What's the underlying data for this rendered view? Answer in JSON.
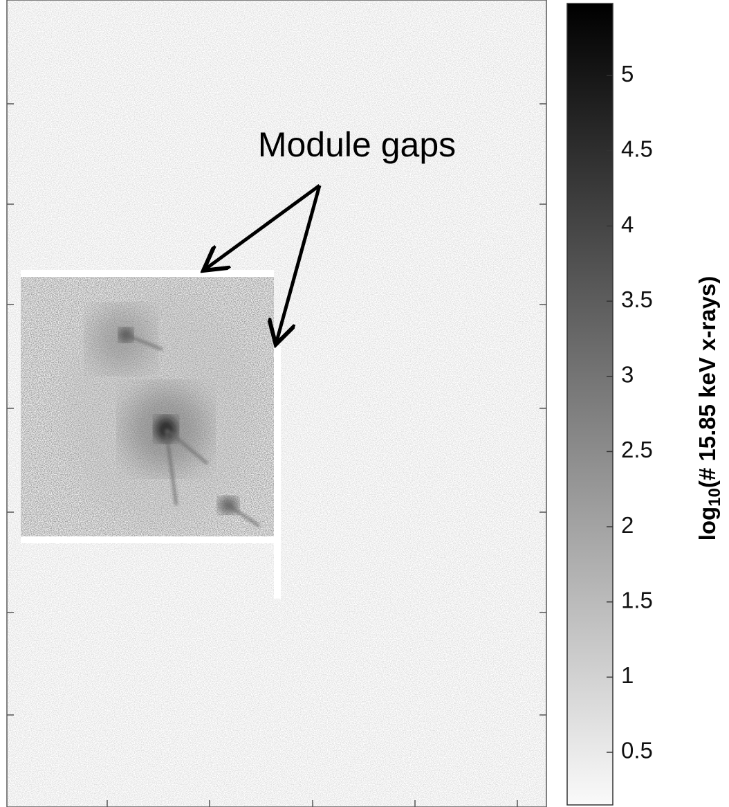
{
  "chart_data": {
    "type": "heatmap",
    "annotation": "Module gaps",
    "colorbar": {
      "label_prefix": "log",
      "label_subscript": "10",
      "label_suffix": "(# 15.85 keV x-rays)",
      "lim": [
        0.15,
        5.48
      ],
      "ticks": [
        0.5,
        1,
        1.5,
        2,
        2.5,
        3,
        3.5,
        4,
        4.5,
        5
      ]
    }
  }
}
